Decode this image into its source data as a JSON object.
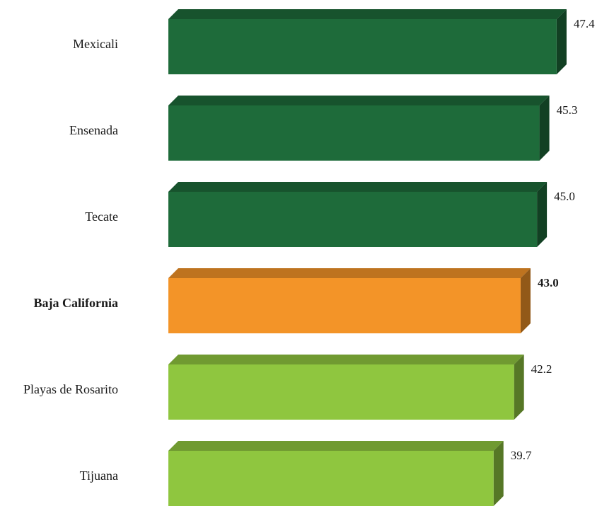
{
  "chart_data": {
    "type": "bar",
    "orientation": "horizontal",
    "categories": [
      "Mexicali",
      "Ensenada",
      "Tecate",
      "Baja California",
      "Playas de Rosarito",
      "Tijuana"
    ],
    "values": [
      47.4,
      45.3,
      45.0,
      43.0,
      42.2,
      39.7
    ],
    "value_labels": [
      "47.4",
      "45.3",
      "45.0",
      "43.0",
      "42.2",
      "39.7"
    ],
    "highlighted_category": "Baja California",
    "title": "",
    "xlabel": "",
    "ylabel": "",
    "grid": false,
    "legend": "none",
    "colors": {
      "above_state": "#1e6b3a",
      "state": "#f39428",
      "below_state": "#8fc63f"
    },
    "bar_colors": [
      "above_state",
      "above_state",
      "above_state",
      "state",
      "below_state",
      "below_state"
    ]
  }
}
